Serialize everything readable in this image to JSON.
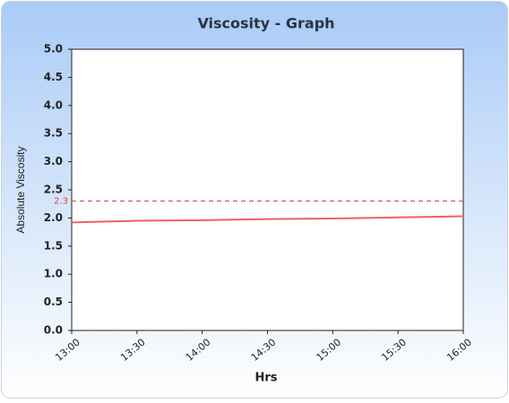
{
  "chart_data": {
    "type": "line",
    "title": "Viscosity - Graph",
    "x_label": "Hrs",
    "y_label": "Absolute Viscosity",
    "categories": [
      "13:00",
      "13:30",
      "14:00",
      "14:30",
      "15:00",
      "15:30",
      "16:00"
    ],
    "series": [
      {
        "name": "Absolute Viscosity",
        "color": "#f06060",
        "values": [
          1.92,
          1.95,
          1.96,
          1.98,
          1.99,
          2.01,
          2.03
        ]
      }
    ],
    "threshold": {
      "value": 2.3,
      "color": "#e04040"
    },
    "ylim": [
      0,
      5
    ],
    "yticks": [
      {
        "value": 0,
        "label": "0.0"
      },
      0.5,
      {
        "value": 1,
        "label": "1.0"
      },
      1.5,
      {
        "value": 2,
        "label": "2.0"
      },
      2.5,
      {
        "value": 3,
        "label": "3.0"
      },
      3.5,
      {
        "value": 4,
        "label": "4.0"
      },
      4.5,
      {
        "value": 5,
        "label": "5.0"
      }
    ],
    "grid": false
  }
}
